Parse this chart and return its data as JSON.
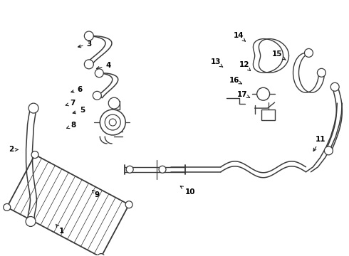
{
  "bg_color": "#ffffff",
  "line_color": "#3a3a3a",
  "figsize": [
    4.9,
    3.6
  ],
  "dpi": 100,
  "label_arrows": [
    [
      1,
      0.175,
      0.095,
      0.155,
      0.13
    ],
    [
      2,
      0.03,
      0.415,
      0.058,
      0.415
    ],
    [
      3,
      0.255,
      0.83,
      0.215,
      0.815
    ],
    [
      4,
      0.31,
      0.745,
      0.268,
      0.73
    ],
    [
      5,
      0.235,
      0.57,
      0.2,
      0.555
    ],
    [
      6,
      0.228,
      0.65,
      0.195,
      0.638
    ],
    [
      7,
      0.208,
      0.598,
      0.185,
      0.588
    ],
    [
      8,
      0.21,
      0.51,
      0.188,
      0.498
    ],
    [
      9,
      0.278,
      0.238,
      0.262,
      0.258
    ],
    [
      10,
      0.545,
      0.248,
      0.51,
      0.278
    ],
    [
      11,
      0.92,
      0.455,
      0.895,
      0.4
    ],
    [
      12,
      0.7,
      0.748,
      0.72,
      0.722
    ],
    [
      13,
      0.618,
      0.758,
      0.64,
      0.738
    ],
    [
      14,
      0.685,
      0.862,
      0.705,
      0.838
    ],
    [
      15,
      0.795,
      0.79,
      0.825,
      0.762
    ],
    [
      16,
      0.672,
      0.688,
      0.695,
      0.672
    ],
    [
      17,
      0.695,
      0.632,
      0.718,
      0.618
    ]
  ]
}
